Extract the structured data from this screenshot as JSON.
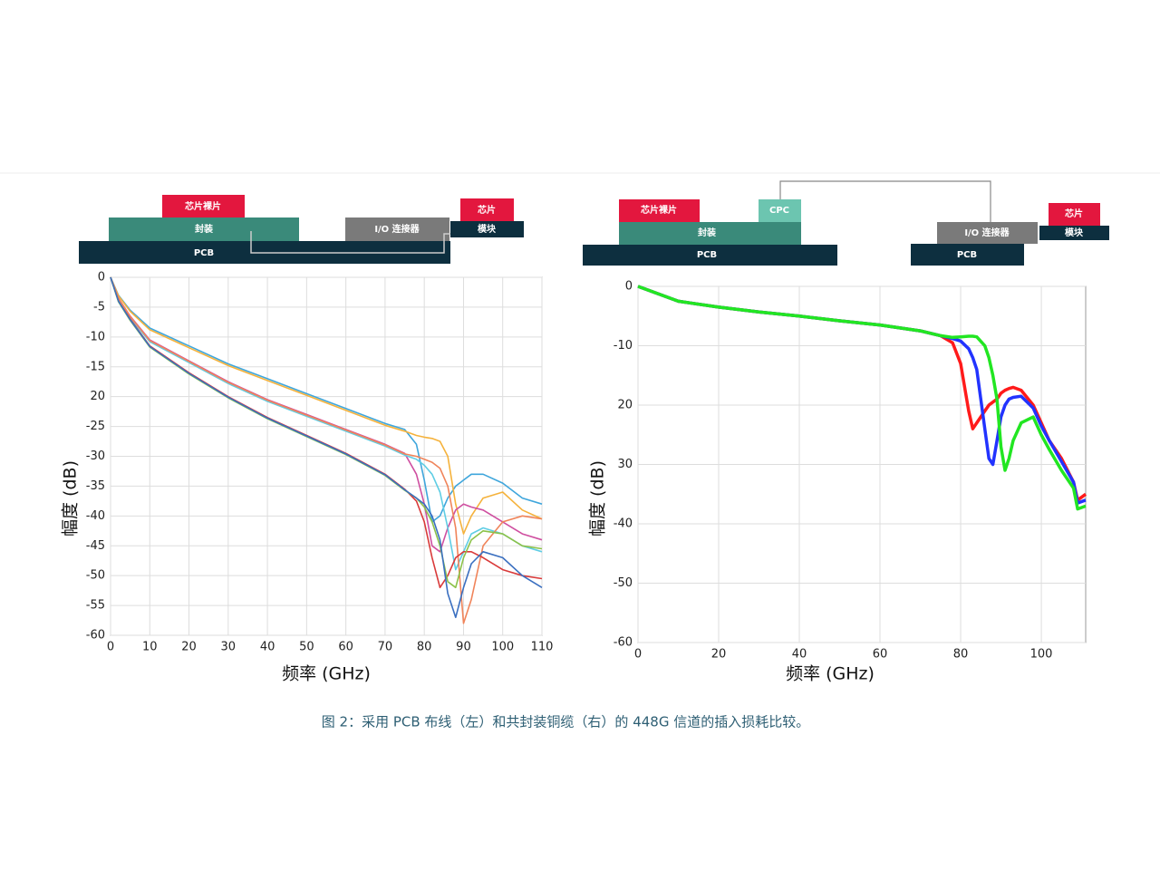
{
  "diagrams": [
    {
      "die": "芯片裸片",
      "package": "封装",
      "pcb": "PCB",
      "connector": "I/O 连接器",
      "chip": "芯片",
      "module": "模块"
    },
    {
      "die": "芯片裸片",
      "cpc": "CPC",
      "package": "封装",
      "pcb": "PCB",
      "connector": "I/O 连接器",
      "pcb2": "PCB",
      "chip": "芯片",
      "module": "模块"
    }
  ],
  "chart_data": [
    {
      "type": "line",
      "xlabel": "频率 (GHz)",
      "ylabel": "幅度 (dB)",
      "xlim": [
        0,
        110
      ],
      "ylim": [
        -60,
        0
      ],
      "xticks": [
        0,
        10,
        20,
        30,
        40,
        50,
        60,
        70,
        80,
        90,
        100,
        110
      ],
      "yticks": [
        0,
        -5,
        -10,
        -15,
        {
          "value": -20,
          "label": "20"
        },
        -25,
        -30,
        -35,
        -40,
        -45,
        -50,
        -55,
        -60
      ],
      "grid": true,
      "x": [
        0,
        2,
        5,
        10,
        20,
        30,
        40,
        50,
        60,
        70,
        75,
        78,
        80,
        82,
        84,
        86,
        88,
        90,
        92,
        95,
        100,
        105,
        110
      ],
      "series": [
        {
          "color": "#3fa6dc",
          "values": [
            0,
            -3,
            -5.5,
            -8.5,
            -11.5,
            -14.5,
            -17,
            -19.5,
            -22,
            -24.5,
            -25.5,
            -28,
            -34,
            -41,
            -40,
            -37,
            -35,
            -34,
            -33,
            -33,
            -34.5,
            -37,
            -38
          ]
        },
        {
          "color": "#f5b23c",
          "values": [
            0,
            -3.1,
            -5.7,
            -8.8,
            -11.8,
            -14.8,
            -17.3,
            -19.8,
            -22.3,
            -24.8,
            -25.8,
            -26.5,
            -26.8,
            -27,
            -27.5,
            -30,
            -38,
            -43,
            -40,
            -37,
            -36,
            -39,
            -40.5
          ]
        },
        {
          "color": "#cf4fa0",
          "values": [
            0,
            -3.5,
            -6.5,
            -10.5,
            -14,
            -17.5,
            -20.5,
            -23,
            -25.5,
            -28,
            -29.5,
            -33,
            -38,
            -45,
            -46,
            -42,
            -39,
            -38,
            -38.5,
            -39,
            -41,
            -43,
            -44
          ]
        },
        {
          "color": "#5fcde4",
          "values": [
            0,
            -3.6,
            -6.8,
            -10.8,
            -14.3,
            -17.8,
            -20.8,
            -23.3,
            -25.8,
            -28.3,
            -29.8,
            -30.5,
            -31.5,
            -33,
            -36,
            -42,
            -49,
            -46,
            -43,
            -42,
            -43,
            -45,
            -46
          ]
        },
        {
          "color": "#f0845a",
          "values": [
            0,
            -3.5,
            -6.6,
            -10.6,
            -14.1,
            -17.6,
            -20.6,
            -23.1,
            -25.6,
            -28.1,
            -29.6,
            -30,
            -30.5,
            -31,
            -32,
            -35,
            -42,
            -58,
            -54,
            -45,
            -41,
            -40,
            -40.5
          ]
        },
        {
          "color": "#d93a3a",
          "values": [
            0,
            -4,
            -7,
            -11.5,
            -16,
            -20,
            -23.5,
            -26.5,
            -29.5,
            -33,
            -35.5,
            -37.5,
            -41,
            -47,
            -52,
            -50,
            -47,
            -46,
            -46,
            -47,
            -49,
            -50,
            -50.5
          ]
        },
        {
          "color": "#8cc24a",
          "values": [
            0,
            -4.1,
            -7.2,
            -11.7,
            -16.2,
            -20.2,
            -23.7,
            -26.7,
            -29.7,
            -33.2,
            -35.7,
            -37,
            -38.5,
            -41,
            -45,
            -51,
            -52,
            -47,
            -44,
            -42.5,
            -43,
            -45,
            -45.5
          ]
        },
        {
          "color": "#3a6fc0",
          "values": [
            0,
            -4,
            -7.1,
            -11.6,
            -16.1,
            -20.1,
            -23.6,
            -26.6,
            -29.6,
            -33.1,
            -35.6,
            -37,
            -38,
            -40,
            -44,
            -53,
            -57,
            -52,
            -48,
            -46,
            -47,
            -50,
            -52
          ]
        }
      ]
    },
    {
      "type": "line",
      "xlabel": "频率 (GHz)",
      "ylabel": "幅度 (dB)",
      "xlim": [
        0,
        111
      ],
      "ylim": [
        -60,
        0
      ],
      "xticks": [
        0,
        20,
        40,
        60,
        80,
        100
      ],
      "yticks": [
        0,
        -10,
        {
          "value": -20,
          "label": "20"
        },
        {
          "value": -30,
          "label": "30"
        },
        -40,
        -50,
        -60
      ],
      "grid": true,
      "x": [
        0,
        10,
        20,
        30,
        40,
        50,
        60,
        70,
        75,
        78,
        80,
        82,
        83,
        84,
        86,
        87,
        88,
        89,
        90,
        91,
        92,
        93,
        95,
        98,
        100,
        102,
        105,
        108,
        109,
        111
      ],
      "series": [
        {
          "color": "#ff1a1a",
          "values": [
            0,
            -2.5,
            -3.5,
            -4.3,
            -5,
            -5.8,
            -6.5,
            -7.5,
            -8.3,
            -9.5,
            -13,
            -21,
            -24,
            -23,
            -21,
            -20,
            -19.5,
            -19,
            -18,
            -17.5,
            -17.2,
            -17,
            -17.5,
            -20,
            -23,
            -26,
            -29,
            -33,
            -36,
            -35
          ]
        },
        {
          "color": "#2233ff",
          "values": [
            0,
            -2.5,
            -3.5,
            -4.3,
            -5,
            -5.8,
            -6.5,
            -7.5,
            -8.3,
            -8.8,
            -9.2,
            -10.5,
            -12,
            -14,
            -24,
            -29,
            -30,
            -26,
            -22,
            -20,
            -19,
            -18.7,
            -18.5,
            -20.5,
            -23.5,
            -26,
            -29.5,
            -33,
            -36.5,
            -36
          ]
        },
        {
          "color": "#22e622",
          "values": [
            0,
            -2.5,
            -3.5,
            -4.3,
            -5,
            -5.8,
            -6.5,
            -7.5,
            -8.3,
            -8.6,
            -8.5,
            -8.4,
            -8.4,
            -8.5,
            -10,
            -12,
            -15,
            -19,
            -27,
            -31,
            -29,
            -26,
            -23,
            -22,
            -25,
            -27.5,
            -31,
            -34,
            -37.5,
            -37
          ]
        }
      ]
    }
  ],
  "caption": "图 2：采用 PCB 布线（左）和共封装铜缆（右）的 448G 信道的插入损耗比较。"
}
